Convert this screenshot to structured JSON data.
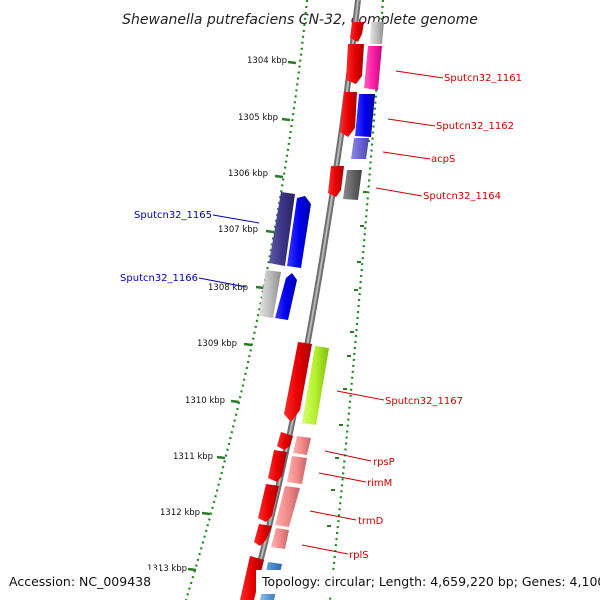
{
  "title": "Shewanella putrefaciens CN-32, complete genome",
  "footer": {
    "accession": "Accession: NC_009438",
    "topology": "Topology: circular; Length: 4,659,220 bp; Genes: 4,100"
  },
  "colors": {
    "backbone": "#8a8a8a",
    "tick_dots": "#1a8a1a",
    "label_forward": "#cc0000",
    "label_reverse": "#0000bb"
  },
  "kbp_ticks": [
    "1304 kbp",
    "1305 kbp",
    "1306 kbp",
    "1307 kbp",
    "1308 kbp",
    "1309 kbp",
    "1310 kbp",
    "1311 kbp",
    "1312 kbp",
    "1313 kbp"
  ],
  "gene_labels": [
    {
      "text": "Sputcn32_1161",
      "strand": "forward"
    },
    {
      "text": "Sputcn32_1162",
      "strand": "forward"
    },
    {
      "text": "acpS",
      "strand": "forward"
    },
    {
      "text": "Sputcn32_1164",
      "strand": "forward"
    },
    {
      "text": "Sputcn32_1165",
      "strand": "reverse"
    },
    {
      "text": "Sputcn32_1166",
      "strand": "reverse"
    },
    {
      "text": "Sputcn32_1167",
      "strand": "forward"
    },
    {
      "text": "rpsP",
      "strand": "forward"
    },
    {
      "text": "rimM",
      "strand": "forward"
    },
    {
      "text": "trmD",
      "strand": "forward"
    },
    {
      "text": "rplS",
      "strand": "forward"
    }
  ]
}
